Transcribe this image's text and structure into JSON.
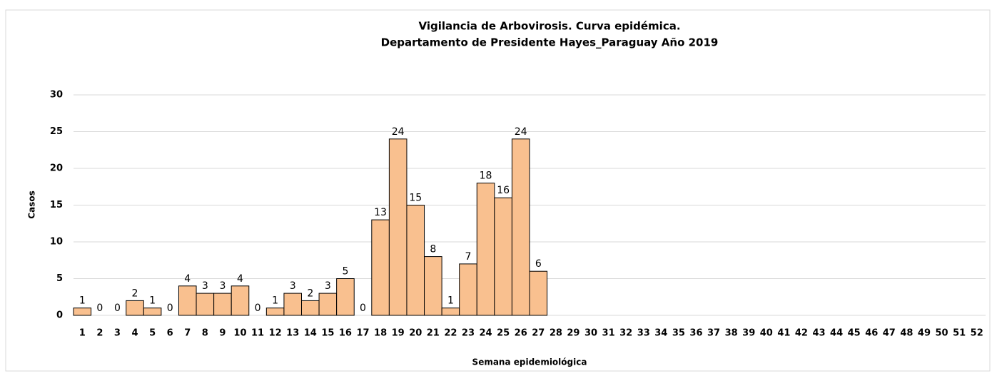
{
  "chart_data": {
    "type": "bar",
    "title": [
      "Vigilancia de Arbovirosis. Curva epidémica.",
      "Departamento de Presidente Hayes_Paraguay Año 2019"
    ],
    "x_label": "Semana epidemiológica",
    "y_label": "Casos",
    "categories": [
      "1",
      "2",
      "3",
      "4",
      "5",
      "6",
      "7",
      "8",
      "9",
      "10",
      "11",
      "12",
      "13",
      "14",
      "15",
      "16",
      "17",
      "18",
      "19",
      "20",
      "21",
      "22",
      "23",
      "24",
      "25",
      "26",
      "27",
      "28",
      "29",
      "30",
      "31",
      "32",
      "33",
      "34",
      "35",
      "36",
      "37",
      "38",
      "39",
      "40",
      "41",
      "42",
      "43",
      "44",
      "45",
      "46",
      "47",
      "48",
      "49",
      "50",
      "51",
      "52"
    ],
    "values": [
      1,
      0,
      0,
      2,
      1,
      0,
      4,
      3,
      3,
      4,
      0,
      1,
      3,
      2,
      3,
      5,
      0,
      13,
      24,
      15,
      8,
      1,
      7,
      18,
      16,
      24,
      6,
      null,
      null,
      null,
      null,
      null,
      null,
      null,
      null,
      null,
      null,
      null,
      null,
      null,
      null,
      null,
      null,
      null,
      null,
      null,
      null,
      null,
      null,
      null,
      null,
      null
    ],
    "color": "#f9c08f",
    "ylim": [
      0,
      30
    ],
    "yticks": [
      0,
      5,
      10,
      15,
      20,
      25,
      30
    ],
    "grid": true
  }
}
